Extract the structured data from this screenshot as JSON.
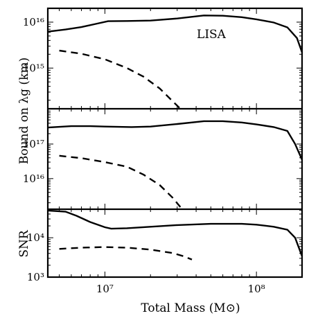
{
  "chart_data": [
    {
      "type": "line",
      "title": "",
      "annotation": "LISA",
      "xlabel": "Total Mass (M⊙)",
      "ylabel": "Bound on λg (km)",
      "xscale": "log",
      "yscale": "log",
      "xlim": [
        4200000.0,
        200000000.0
      ],
      "ylim": [
        130000000000000.0,
        2e+16
      ],
      "yticks": [
        {
          "value": 1000000000000000.0,
          "label": "10¹⁵"
        },
        {
          "value": 1e+16,
          "label": "10¹⁶"
        }
      ],
      "series": [
        {
          "style": "solid",
          "x": [
            4200000.0,
            5500000.0,
            7000000.0,
            8500000.0,
            10500000.0,
            14000000.0,
            20000000.0,
            30000000.0,
            45000000.0,
            60000000.0,
            80000000.0,
            100000000.0,
            130000000.0,
            160000000.0,
            185000000.0,
            200000000.0
          ],
          "y": [
            6200000000000000.0,
            6900000000000000.0,
            7800000000000000.0,
            9000000000000000.0,
            1.05e+16,
            1.06e+16,
            1.08e+16,
            1.2e+16,
            1.4e+16,
            1.38e+16,
            1.28e+16,
            1.15e+16,
            9800000000000000.0,
            7700000000000000.0,
            4500000000000000.0,
            2200000000000000.0
          ]
        },
        {
          "style": "dashed",
          "x": [
            5000000.0,
            7000000.0,
            10000000.0,
            14000000.0,
            18000000.0,
            23000000.0,
            28000000.0,
            31500000.0
          ],
          "y": [
            2400000000000000.0,
            2050000000000000.0,
            1550000000000000.0,
            1000000000000000.0,
            650000000000000.0,
            360000000000000.0,
            190000000000000.0,
            130000000000000.0
          ]
        }
      ]
    },
    {
      "type": "line",
      "title": "",
      "xscale": "log",
      "yscale": "log",
      "xlim": [
        4200000.0,
        200000000.0
      ],
      "ylim": [
        1300000000000000.0,
        1.05e+18
      ],
      "yticks": [
        {
          "value": 1e+16,
          "label": "10¹⁶"
        },
        {
          "value": 1e+17,
          "label": "10¹⁷"
        }
      ],
      "series": [
        {
          "style": "solid",
          "x": [
            4200000.0,
            6000000.0,
            8000000.0,
            10000000.0,
            15000000.0,
            20000000.0,
            30000000.0,
            45000000.0,
            60000000.0,
            80000000.0,
            100000000.0,
            130000000.0,
            160000000.0,
            180000000.0,
            200000000.0
          ],
          "y": [
            3e+17,
            3.3e+17,
            3.3e+17,
            3.2e+17,
            3.1e+17,
            3.2e+17,
            3.8e+17,
            4.6e+17,
            4.6e+17,
            4.2e+17,
            3.7e+17,
            3.1e+17,
            2.4e+17,
            1e+17,
            3.5e+16
          ]
        },
        {
          "style": "dashed",
          "x": [
            5000000.0,
            7000000.0,
            10000000.0,
            14000000.0,
            18000000.0,
            23000000.0,
            28000000.0,
            31500000.0
          ],
          "y": [
            4.6e+16,
            3.9e+16,
            3e+16,
            2.2e+16,
            1.3e+16,
            6500000000000000.0,
            2800000000000000.0,
            1500000000000000.0
          ]
        }
      ]
    },
    {
      "type": "line",
      "title": "",
      "ylabel": "SNR",
      "xscale": "log",
      "yscale": "log",
      "xlim": [
        4200000.0,
        200000000.0
      ],
      "ylim": [
        1000.0,
        53000.0
      ],
      "xticks": [
        {
          "value": 10000000.0,
          "label": "10⁷"
        },
        {
          "value": 100000000.0,
          "label": "10⁸"
        }
      ],
      "yticks": [
        {
          "value": 1000.0,
          "label": "10³"
        },
        {
          "value": 10000.0,
          "label": "10⁴"
        }
      ],
      "series": [
        {
          "style": "solid",
          "x": [
            4200000.0,
            5500000.0,
            6500000.0,
            8000000.0,
            10000000.0,
            11000000.0,
            14000000.0,
            20000000.0,
            30000000.0,
            50000000.0,
            80000000.0,
            100000000.0,
            130000000.0,
            160000000.0,
            180000000.0,
            200000000.0
          ],
          "y": [
            49000.0,
            46000.0,
            36000.0,
            25000.0,
            18500.0,
            17000.0,
            17500.0,
            19000.0,
            21000.0,
            22500.0,
            22500.0,
            21500.0,
            19000.0,
            16000.0,
            10000.0,
            3400.0
          ]
        },
        {
          "style": "dashed",
          "x": [
            5000000.0,
            7000000.0,
            10000000.0,
            14000000.0,
            20000000.0,
            28000000.0,
            33000000.0,
            37500000.0
          ],
          "y": [
            5200.0,
            5600.0,
            5800.0,
            5600.0,
            5000.0,
            4100.0,
            3400.0,
            2800.0
          ]
        }
      ]
    }
  ]
}
